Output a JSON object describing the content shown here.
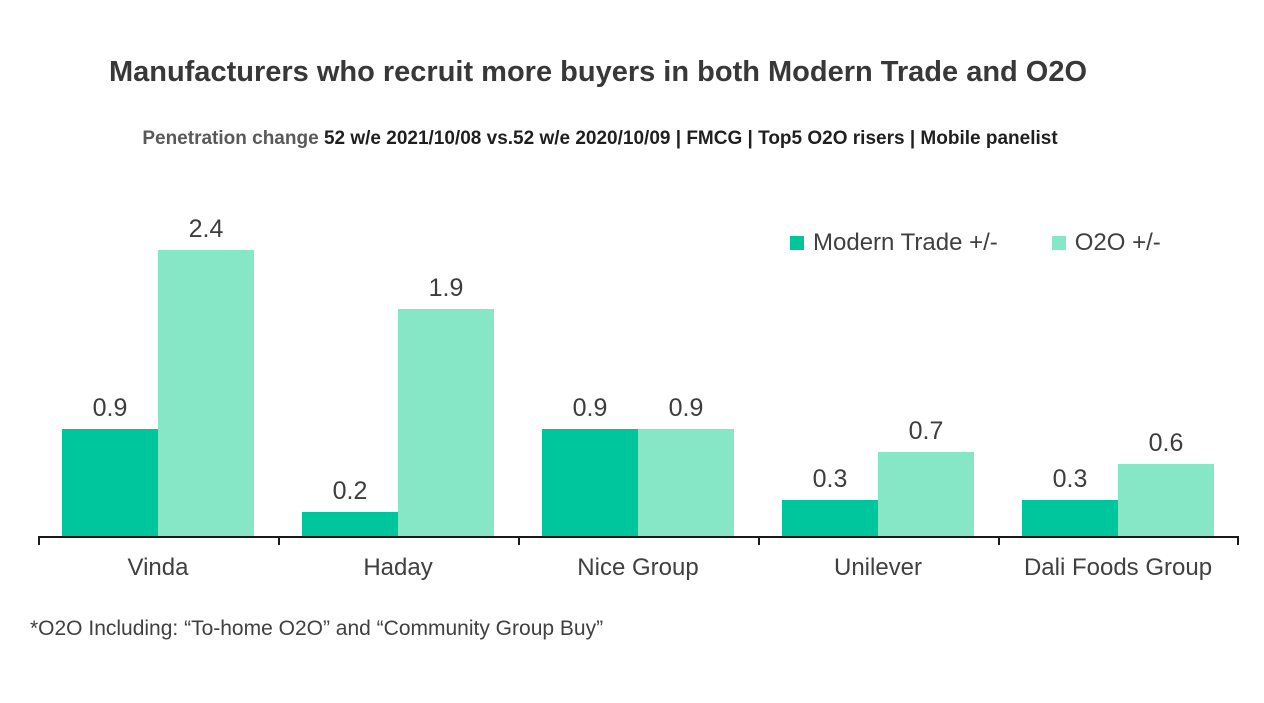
{
  "title": "Manufacturers who recruit more buyers in both Modern Trade and O2O",
  "subtitle": {
    "prefix": "Penetration change ",
    "emphasis": "52 w/e 2021/10/08 vs.52 w/e 2020/10/09",
    "suffix": " | FMCG | Top5 O2O risers | Mobile panelist"
  },
  "footnote": "*O2O Including: “To-home O2O” and “Community Group Buy”",
  "chart_data": {
    "type": "bar",
    "title": "Manufacturers who recruit more buyers in both Modern Trade and O2O",
    "subtitle": "Penetration change 52 w/e 2021/10/08 vs.52 w/e 2020/10/09 | FMCG | Top5 O2O risers | Mobile panelist",
    "categories": [
      "Vinda",
      "Haday",
      "Nice Group",
      "Unilever",
      "Dali Foods Group"
    ],
    "series": [
      {
        "name": "Modern Trade +/-",
        "color": "#00C69E",
        "values": [
          0.9,
          0.2,
          0.9,
          0.3,
          0.3
        ]
      },
      {
        "name": "O2O +/-",
        "color": "#86E7C7",
        "values": [
          2.4,
          1.9,
          0.9,
          0.7,
          0.6
        ]
      }
    ],
    "xlabel": "",
    "ylabel": "",
    "ylim": [
      0,
      2.85
    ],
    "grid": false,
    "legend_position": "top-right",
    "data_labels": true,
    "axis_color": "#1a1a1a"
  }
}
